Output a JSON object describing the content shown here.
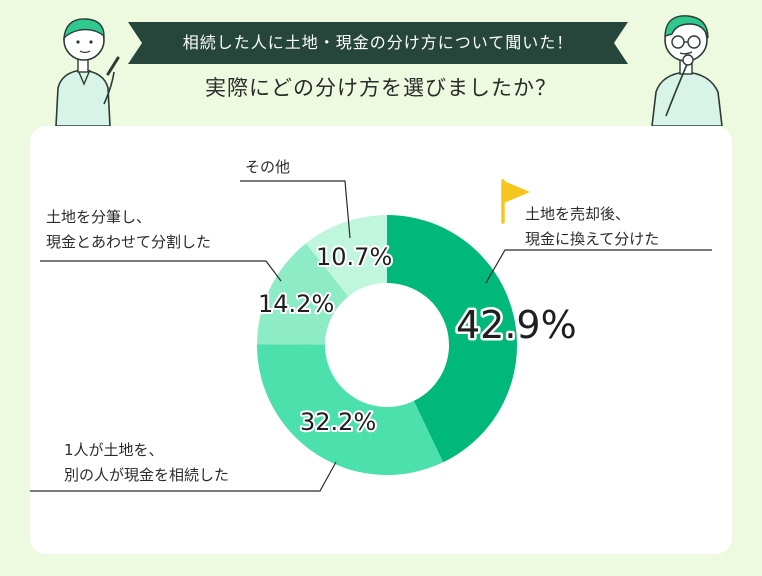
{
  "header": {
    "banner": "相続した人に土地・現金の分け方について聞いた！",
    "question": "実際にどの分け方を選びましたか？"
  },
  "colors": {
    "banner_bg": "#26463b",
    "page_bg": "#eefadf",
    "slice_1": "#00b87a",
    "slice_2": "#4be0ac",
    "slice_3": "#8debc6",
    "slice_4": "#c1f6de"
  },
  "chart_data": {
    "type": "pie",
    "donut": true,
    "slices": [
      {
        "label_lines": [
          "土地を売却後、",
          "現金に換えて分けた"
        ],
        "value": 42.9,
        "display": "42.9%",
        "color": "#00b87a",
        "highlight": true
      },
      {
        "label_lines": [
          "1人が土地を、",
          "別の人が現金を相続した"
        ],
        "value": 32.2,
        "display": "32.2%",
        "color": "#4be0ac"
      },
      {
        "label_lines": [
          "土地を分筆し、",
          "現金とあわせて分割した"
        ],
        "value": 14.2,
        "display": "14.2%",
        "color": "#8debc6"
      },
      {
        "label_lines": [
          "その他"
        ],
        "value": 10.7,
        "display": "10.7%",
        "color": "#c1f6de"
      }
    ]
  }
}
